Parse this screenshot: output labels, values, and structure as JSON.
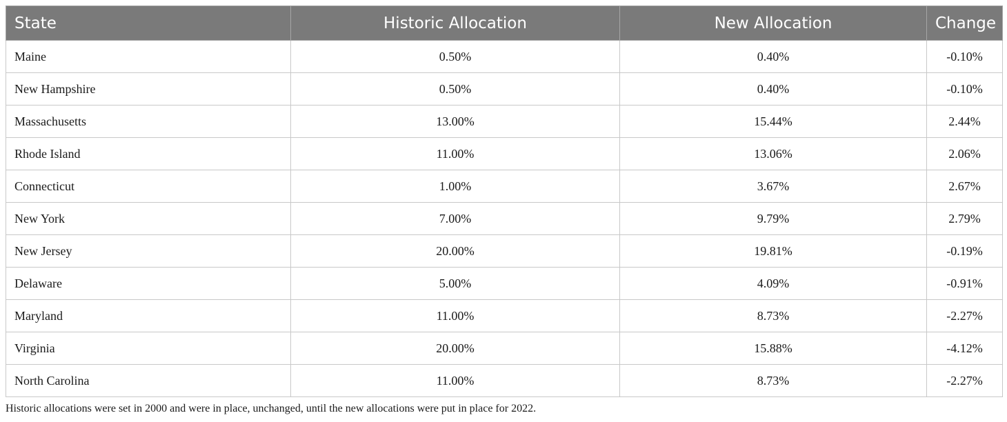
{
  "table": {
    "headers": [
      "State",
      "Historic Allocation",
      "New Allocation",
      "Change"
    ],
    "rows": [
      [
        "Maine",
        "0.50%",
        "0.40%",
        "-0.10%"
      ],
      [
        "New Hampshire",
        "0.50%",
        "0.40%",
        "-0.10%"
      ],
      [
        "Massachusetts",
        "13.00%",
        "15.44%",
        "2.44%"
      ],
      [
        "Rhode Island",
        "11.00%",
        "13.06%",
        "2.06%"
      ],
      [
        "Connecticut",
        "1.00%",
        "3.67%",
        "2.67%"
      ],
      [
        "New York",
        "7.00%",
        "9.79%",
        "2.79%"
      ],
      [
        "New Jersey",
        "20.00%",
        "19.81%",
        "-0.19%"
      ],
      [
        "Delaware",
        "5.00%",
        "4.09%",
        "-0.91%"
      ],
      [
        "Maryland",
        "11.00%",
        "8.73%",
        "-2.27%"
      ],
      [
        "Virginia",
        "20.00%",
        "15.88%",
        "-4.12%"
      ],
      [
        "North Carolina",
        "11.00%",
        "8.73%",
        "-2.27%"
      ]
    ],
    "header_bg_color": "#7a7a7a",
    "header_text_color": "#ffffff"
  },
  "footnote": "Historic allocations were set in 2000 and were in place, unchanged, until the new allocations were put in place for 2022."
}
